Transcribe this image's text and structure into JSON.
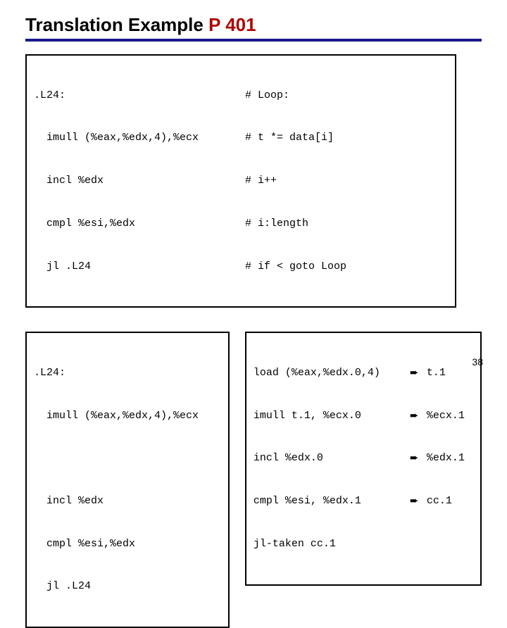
{
  "title": {
    "black": "Translation Example",
    "red": "P 401"
  },
  "colors": {
    "underline": "#1a1a8a",
    "title_red": "#b00000",
    "border": "#000000",
    "bg": "#ffffff"
  },
  "top": {
    "left": [
      ".L24:",
      "  imull (%eax,%edx,4),%ecx",
      "  incl %edx",
      "  cmpl %esi,%edx",
      "  jl .L24"
    ],
    "right": [
      "# Loop:",
      "# t *= data[i]",
      "# i++",
      "# i:length",
      "# if < goto Loop"
    ]
  },
  "bottom_left": [
    ".L24:",
    "  imull (%eax,%edx,4),%ecx",
    "",
    "  incl %edx",
    "  cmpl %esi,%edx",
    "  jl .L24"
  ],
  "bottom_right": [
    {
      "op": "load (%eax,%edx.0,4)",
      "arrow": "➨",
      "res": "t.1"
    },
    {
      "op": "imull t.1, %ecx.0",
      "arrow": "➨",
      "res": "%ecx.1"
    },
    {
      "op": "incl %edx.0",
      "arrow": "➨",
      "res": "%edx.1"
    },
    {
      "op": "cmpl %esi, %edx.1",
      "arrow": "➨",
      "res": "cc.1"
    },
    {
      "op": "jl-taken cc.1",
      "arrow": "",
      "res": ""
    }
  ],
  "page_number": "38"
}
